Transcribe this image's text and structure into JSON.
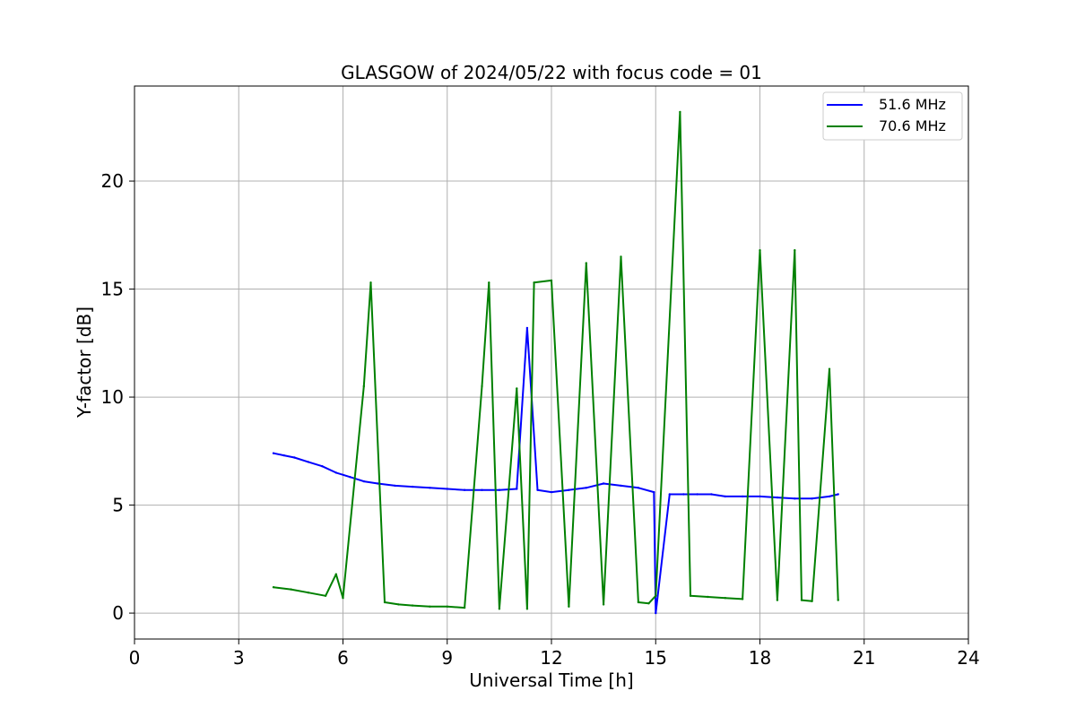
{
  "chart_data": {
    "type": "line",
    "title": "GLASGOW of 2024/05/22 with focus code = 01",
    "xlabel": "Universal Time [h]",
    "ylabel": "Y-factor [dB]",
    "xlim": [
      0,
      24
    ],
    "ylim": [
      -1.2,
      24.4
    ],
    "xticks": [
      0,
      3,
      6,
      9,
      12,
      15,
      18,
      21,
      24
    ],
    "yticks": [
      0,
      5,
      10,
      15,
      20
    ],
    "grid": true,
    "legend_position": "top-right",
    "series": [
      {
        "name": "51.6 MHz",
        "color": "#0000ff",
        "x": [
          4.0,
          4.3,
          4.6,
          5.0,
          5.4,
          5.8,
          6.2,
          6.6,
          7.0,
          7.5,
          8.0,
          8.5,
          9.0,
          9.5,
          10.0,
          10.5,
          11.0,
          11.3,
          11.6,
          12.0,
          12.5,
          13.0,
          13.5,
          14.0,
          14.5,
          14.95,
          15.0,
          15.4,
          15.8,
          16.2,
          16.6,
          17.0,
          17.5,
          18.0,
          18.5,
          19.0,
          19.5,
          20.0,
          20.25
        ],
        "y": [
          7.4,
          7.3,
          7.2,
          7.0,
          6.8,
          6.5,
          6.3,
          6.1,
          6.0,
          5.9,
          5.85,
          5.8,
          5.75,
          5.7,
          5.7,
          5.7,
          5.75,
          13.2,
          5.7,
          5.6,
          5.7,
          5.8,
          6.0,
          5.9,
          5.8,
          5.6,
          0.0,
          5.5,
          5.5,
          5.5,
          5.5,
          5.4,
          5.4,
          5.4,
          5.35,
          5.3,
          5.3,
          5.4,
          5.5
        ]
      },
      {
        "name": "70.6 MHz",
        "color": "#008000",
        "x": [
          4.0,
          4.5,
          5.0,
          5.5,
          5.8,
          6.0,
          6.6,
          6.8,
          7.2,
          7.6,
          8.0,
          8.5,
          9.0,
          9.5,
          10.0,
          10.2,
          10.5,
          11.0,
          11.3,
          11.5,
          12.0,
          12.5,
          13.0,
          13.5,
          14.0,
          14.5,
          14.8,
          15.0,
          15.7,
          16.0,
          16.5,
          17.0,
          17.5,
          18.0,
          18.5,
          19.0,
          19.2,
          19.5,
          20.0,
          20.25
        ],
        "y": [
          1.2,
          1.1,
          0.95,
          0.8,
          1.8,
          0.7,
          10.5,
          15.3,
          0.5,
          0.4,
          0.35,
          0.3,
          0.3,
          0.25,
          10.5,
          15.3,
          0.2,
          10.4,
          0.2,
          15.3,
          15.4,
          0.3,
          16.2,
          0.4,
          16.5,
          0.5,
          0.45,
          0.8,
          23.2,
          0.8,
          0.75,
          0.7,
          0.65,
          16.8,
          0.6,
          16.8,
          0.6,
          0.55,
          11.3,
          0.6
        ]
      }
    ]
  }
}
